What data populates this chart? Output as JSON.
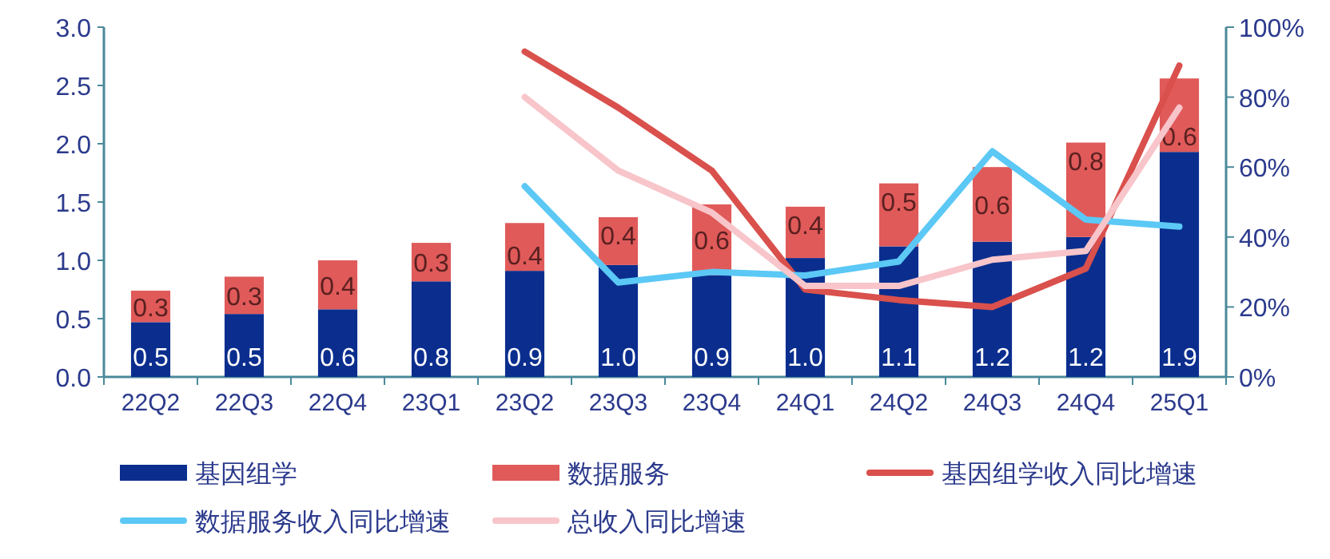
{
  "chart_data": {
    "type": "bar",
    "stacked": true,
    "legend": "bottom",
    "grid": false,
    "categories": [
      "22Q2",
      "22Q3",
      "22Q4",
      "23Q1",
      "23Q2",
      "23Q3",
      "23Q4",
      "24Q1",
      "24Q2",
      "24Q3",
      "24Q4",
      "25Q1"
    ],
    "ylim": [
      0,
      3
    ],
    "yticks": [
      {
        "value": 0,
        "label": "0.0"
      },
      {
        "value": 0.5,
        "label": "0.5"
      },
      {
        "value": 1,
        "label": "1.0"
      },
      {
        "value": 1.5,
        "label": "1.5"
      },
      {
        "value": 2,
        "label": "2.0"
      },
      {
        "value": 2.5,
        "label": "2.5"
      },
      {
        "value": 3,
        "label": "3.0"
      }
    ],
    "y2lim": [
      0,
      100
    ],
    "y2ticks": [
      {
        "value": 0,
        "label": "0%"
      },
      {
        "value": 20,
        "label": "20%"
      },
      {
        "value": 40,
        "label": "40%"
      },
      {
        "value": 60,
        "label": "60%"
      },
      {
        "value": 80,
        "label": "80%"
      },
      {
        "value": 100,
        "label": "100%"
      }
    ],
    "series": [
      {
        "name": "基因组学",
        "color": "#0b2e8e",
        "values": [
          0.47,
          0.54,
          0.58,
          0.82,
          0.91,
          0.96,
          0.87,
          1.02,
          1.12,
          1.16,
          1.2,
          1.93
        ],
        "value_labels": [
          "0.5",
          "0.5",
          "0.6",
          "0.8",
          "0.9",
          "1.0",
          "0.9",
          "1.0",
          "1.1",
          "1.2",
          "1.2",
          "1.9"
        ]
      },
      {
        "name": "数据服务",
        "color": "#e05a5a",
        "values": [
          0.27,
          0.32,
          0.42,
          0.33,
          0.41,
          0.41,
          0.61,
          0.44,
          0.54,
          0.64,
          0.81,
          0.63
        ],
        "value_labels": [
          "0.3",
          "0.3",
          "0.4",
          "0.3",
          "0.4",
          "0.4",
          "0.6",
          "0.4",
          "0.5",
          "0.6",
          "0.8",
          "0.6"
        ]
      },
      {
        "name": "基因组学收入同比增速",
        "type": "line",
        "axis": "y2",
        "color": "#d9504c",
        "values": [
          null,
          null,
          null,
          null,
          93,
          77,
          59,
          25,
          22,
          20,
          31,
          89
        ]
      },
      {
        "name": "数据服务收入同比增速",
        "type": "line",
        "axis": "y2",
        "color": "#5bc8f5",
        "values": [
          null,
          null,
          null,
          null,
          54.5,
          27,
          30,
          29,
          33,
          64.5,
          45,
          43
        ]
      },
      {
        "name": "总收入同比增速",
        "type": "line",
        "axis": "y2",
        "color": "#f7c5ca",
        "values": [
          null,
          null,
          null,
          null,
          80,
          59,
          47,
          26,
          26,
          33.5,
          36,
          77
        ]
      }
    ]
  }
}
